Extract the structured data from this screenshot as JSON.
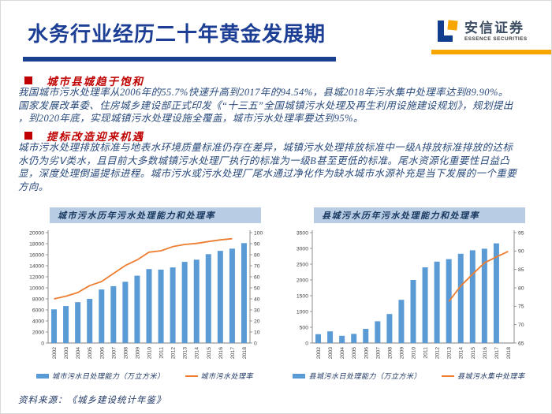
{
  "header": {
    "title": "水务行业经历二十年黄金发展期",
    "logo_cn": "安信证券",
    "logo_en": "ESSENCE SECURITIES"
  },
  "sections": [
    {
      "heading": "城市县城趋于饱和",
      "body": "我国城市污水处理率从2006年的55.7%快速升高到2017年的94.54%，县城2018年污水集中处理率达到89.90%。\n国家发展改革委、住房城乡建设部正式印发《“十三五”全国城镇污水处理及再生利用设施建设规划》，规划提出\n，到2020年底，实现城镇污水处理设施全覆盖，城市污水处理率要达到95%。"
    },
    {
      "heading": "提标改造迎来机遇",
      "body": "城市污水处理排放标准与地表水环境质量标准仍存在差异，城镇污水处理排放标准中一级A排放标准排放的达标\n水仍为劣Ⅴ类水，且目前大多数城镇污水处理厂执行的标准为一级B甚至更低的标准。尾水资源化重要性日益凸\n显，深度处理倒逼提标进程。城市污水或污水处理厂尾水通过净化作为缺水城市水源补充是当下发展的一个重要\n方向。"
    }
  ],
  "source": "资料来源：《城乡建设统计年鉴》",
  "chart_data": [
    {
      "type": "bar",
      "title": "城市污水历年污水处理能力和处理率",
      "categories": [
        "2002",
        "2003",
        "2004",
        "2005",
        "2006",
        "2007",
        "2008",
        "2009",
        "2010",
        "2011",
        "2012",
        "2013",
        "2014",
        "2015",
        "2016",
        "2017",
        "2018"
      ],
      "series": [
        {
          "name": "城市污水日处理能力（万立方米）",
          "type": "bar",
          "axis": "left",
          "color": "#5b9bd5",
          "values": [
            6100,
            6700,
            7400,
            8000,
            9700,
            10300,
            11100,
            12200,
            13400,
            13300,
            13700,
            14700,
            15100,
            16100,
            16700,
            17100,
            18100
          ]
        },
        {
          "name": "城市污水处理率",
          "type": "line",
          "axis": "right",
          "color": "#ed7d31",
          "values": [
            40.0,
            42.4,
            45.7,
            52.0,
            55.7,
            62.9,
            70.2,
            75.3,
            82.3,
            83.6,
            87.3,
            89.3,
            90.2,
            91.9,
            93.4,
            94.5,
            null
          ]
        }
      ],
      "left_axis": {
        "min": 0,
        "max": 20000,
        "step": 2000
      },
      "right_axis": {
        "min": 0,
        "max": 100,
        "step": 10
      },
      "grid": false,
      "legend_position": "bottom"
    },
    {
      "type": "bar",
      "title": "县城污水历年污水处理能力和处理率",
      "categories": [
        "2002",
        "2003",
        "2004",
        "2005",
        "2006",
        "2007",
        "2008",
        "2009",
        "2010",
        "2011",
        "2012",
        "2013",
        "2014",
        "2015",
        "2016",
        "2017",
        "2018"
      ],
      "series": [
        {
          "name": "县城污水日处理能力（万立方米）",
          "type": "bar",
          "axis": "left",
          "color": "#5b9bd5",
          "values": [
            280,
            370,
            230,
            290,
            450,
            690,
            920,
            1370,
            2000,
            2400,
            2580,
            2660,
            2830,
            2940,
            2990,
            3160,
            null
          ]
        },
        {
          "name": "县城污水集中处理率",
          "type": "line",
          "axis": "right",
          "color": "#ed7d31",
          "values": [
            null,
            null,
            null,
            null,
            null,
            null,
            null,
            null,
            null,
            null,
            null,
            76.3,
            80.5,
            83.7,
            86.8,
            88.4,
            89.9
          ]
        }
      ],
      "left_axis": {
        "min": 0,
        "max": 3500,
        "step": 500
      },
      "right_axis": {
        "min": 65,
        "max": 95,
        "step": 5
      },
      "grid": false,
      "legend_position": "bottom"
    }
  ]
}
